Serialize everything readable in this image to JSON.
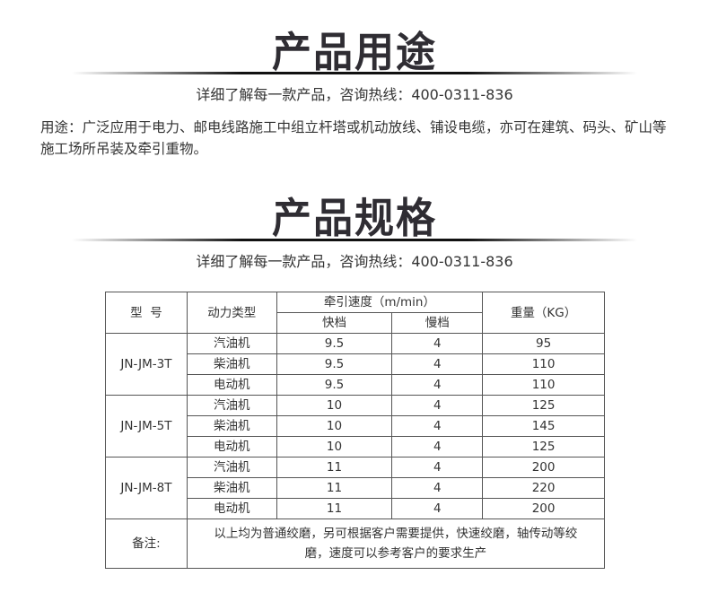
{
  "section1": {
    "title": "产品用途",
    "hotline": "详细了解每一款产品，咨询热线：400-0311-836",
    "usage": "用途：广泛应用于电力、邮电线路施工中组立杆塔或机动放线、铺设电缆，亦可在建筑、码头、矿山等施工场所吊装及牵引重物。"
  },
  "section2": {
    "title": "产品规格",
    "hotline": "详细了解每一款产品，咨询热线：400-0311-836"
  },
  "table": {
    "headers": {
      "model": "型  号",
      "power": "动力类型",
      "speed": "牵引速度（m/min）",
      "fast": "快档",
      "slow": "慢档",
      "weight": "重量（KG）"
    },
    "groups": [
      {
        "model": "JN-JM-3T",
        "rows": [
          [
            "汽油机",
            "9.5",
            "4",
            "95"
          ],
          [
            "柴油机",
            "9.5",
            "4",
            "110"
          ],
          [
            "电动机",
            "9.5",
            "4",
            "110"
          ]
        ]
      },
      {
        "model": "JN-JM-5T",
        "rows": [
          [
            "汽油机",
            "10",
            "4",
            "125"
          ],
          [
            "柴油机",
            "10",
            "4",
            "145"
          ],
          [
            "电动机",
            "10",
            "4",
            "125"
          ]
        ]
      },
      {
        "model": "JN-JM-8T",
        "rows": [
          [
            "汽油机",
            "11",
            "4",
            "200"
          ],
          [
            "柴油机",
            "11",
            "4",
            "220"
          ],
          [
            "电动机",
            "11",
            "4",
            "200"
          ]
        ]
      }
    ],
    "note_label": "备注:",
    "note_text": "以上均为普通绞磨，另可根据客户需要提供，快速绞磨，轴传动等绞磨，速度可以参考客户的要求生产"
  }
}
